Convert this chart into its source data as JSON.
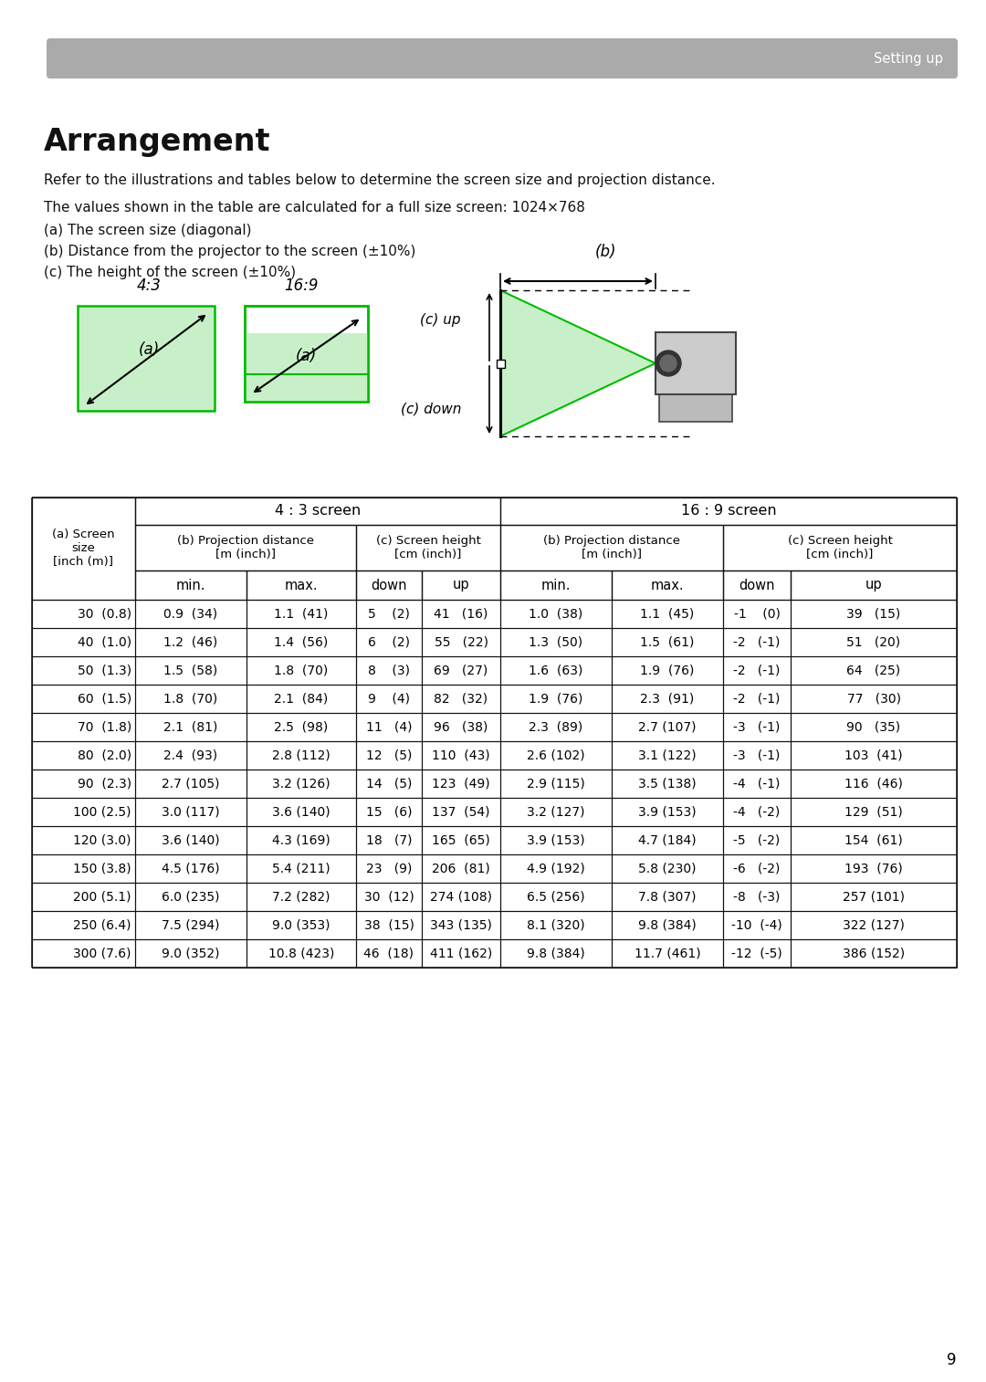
{
  "title": "Arrangement",
  "header_bar_text": "Setting up",
  "intro_lines": [
    "Refer to the illustrations and tables below to determine the screen size and projection distance.",
    "The values shown in the table are calculated for a full size screen: 1024×768",
    "(a) The screen size (diagonal)",
    "(b) Distance from the projector to the screen (±10%)",
    "(c) The height of the screen (±10%)"
  ],
  "table_data": [
    [
      "30  (0.8)",
      "0.9  (34)",
      "1.1  (41)",
      "5    (2)",
      "41   (16)",
      "1.0  (38)",
      "1.1  (45)",
      "-1    (0)",
      "39   (15)"
    ],
    [
      "40  (1.0)",
      "1.2  (46)",
      "1.4  (56)",
      "6    (2)",
      "55   (22)",
      "1.3  (50)",
      "1.5  (61)",
      "-2   (-1)",
      "51   (20)"
    ],
    [
      "50  (1.3)",
      "1.5  (58)",
      "1.8  (70)",
      "8    (3)",
      "69   (27)",
      "1.6  (63)",
      "1.9  (76)",
      "-2   (-1)",
      "64   (25)"
    ],
    [
      "60  (1.5)",
      "1.8  (70)",
      "2.1  (84)",
      "9    (4)",
      "82   (32)",
      "1.9  (76)",
      "2.3  (91)",
      "-2   (-1)",
      "77   (30)"
    ],
    [
      "70  (1.8)",
      "2.1  (81)",
      "2.5  (98)",
      "11   (4)",
      "96   (38)",
      "2.3  (89)",
      "2.7 (107)",
      "-3   (-1)",
      "90   (35)"
    ],
    [
      "80  (2.0)",
      "2.4  (93)",
      "2.8 (112)",
      "12   (5)",
      "110  (43)",
      "2.6 (102)",
      "3.1 (122)",
      "-3   (-1)",
      "103  (41)"
    ],
    [
      "90  (2.3)",
      "2.7 (105)",
      "3.2 (126)",
      "14   (5)",
      "123  (49)",
      "2.9 (115)",
      "3.5 (138)",
      "-4   (-1)",
      "116  (46)"
    ],
    [
      "100 (2.5)",
      "3.0 (117)",
      "3.6 (140)",
      "15   (6)",
      "137  (54)",
      "3.2 (127)",
      "3.9 (153)",
      "-4   (-2)",
      "129  (51)"
    ],
    [
      "120 (3.0)",
      "3.6 (140)",
      "4.3 (169)",
      "18   (7)",
      "165  (65)",
      "3.9 (153)",
      "4.7 (184)",
      "-5   (-2)",
      "154  (61)"
    ],
    [
      "150 (3.8)",
      "4.5 (176)",
      "5.4 (211)",
      "23   (9)",
      "206  (81)",
      "4.9 (192)",
      "5.8 (230)",
      "-6   (-2)",
      "193  (76)"
    ],
    [
      "200 (5.1)",
      "6.0 (235)",
      "7.2 (282)",
      "30  (12)",
      "274 (108)",
      "6.5 (256)",
      "7.8 (307)",
      "-8   (-3)",
      "257 (101)"
    ],
    [
      "250 (6.4)",
      "7.5 (294)",
      "9.0 (353)",
      "38  (15)",
      "343 (135)",
      "8.1 (320)",
      "9.8 (384)",
      "-10  (-4)",
      "322 (127)"
    ],
    [
      "300 (7.6)",
      "9.0 (352)",
      "10.8 (423)",
      "46  (18)",
      "411 (162)",
      "9.8 (384)",
      "11.7 (461)",
      "-12  (-5)",
      "386 (152)"
    ]
  ],
  "bg_color": "#ffffff",
  "header_bar_color": "#aaaaaa",
  "green_fill": "#c8f0c8",
  "green_border": "#00bb00",
  "page_number": "9"
}
